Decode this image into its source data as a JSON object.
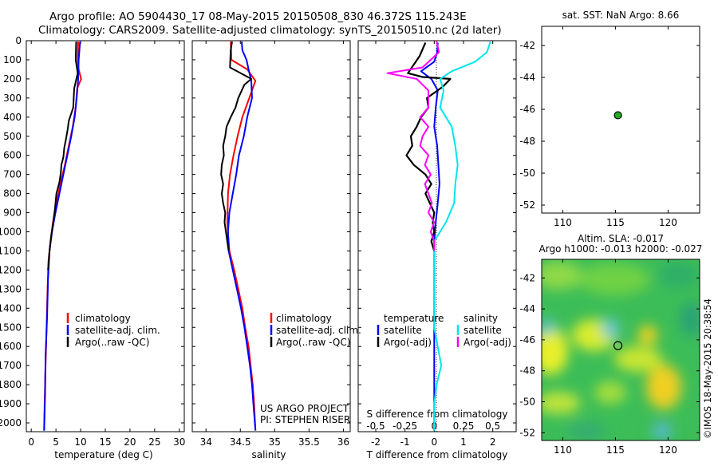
{
  "titles": {
    "line1": "Argo profile: AO 5904430_17 08-May-2015 20150508_830 46.372S 115.243E",
    "line2": "Climatology: CARS2009. Satellite-adjusted climatology: synTS_20150510.nc (2d later)"
  },
  "depth_ticks": [
    "0",
    "100",
    "200",
    "300",
    "400",
    "500",
    "600",
    "700",
    "800",
    "900",
    "1000",
    "1100",
    "1200",
    "1300",
    "1400",
    "1500",
    "1600",
    "1700",
    "1800",
    "1900",
    "2000"
  ],
  "temp_panel": {
    "xlabel": "temperature (deg C)",
    "xticks": [
      "0",
      "5",
      "10",
      "15",
      "20",
      "25",
      "30"
    ],
    "legend": [
      "climatology",
      "satellite-adj. clim.",
      "Argo(..raw -QC)"
    ]
  },
  "sal_panel": {
    "xlabel": "salinity",
    "xticks": [
      "34",
      "34.5",
      "35",
      "35.5",
      "36"
    ],
    "legend": [
      "climatology",
      "satellite-adj. clim.",
      "Argo(..raw -QC)"
    ],
    "credit1": "US ARGO PROJECT",
    "credit2": "PI: STEPHEN RISER"
  },
  "diff_panel": {
    "xlabel": "T difference from climatology",
    "top_label": "S difference from climatology",
    "xticks": [
      "-2",
      "-1",
      "0",
      "1",
      "2"
    ],
    "sticks": [
      "-0.5",
      "-0.25",
      "0",
      "0.25",
      "0.5"
    ],
    "leg_temp_head": "temperature",
    "leg_temp_items": [
      "satellite",
      "Argo(-adj)"
    ],
    "leg_sal_head": "salinity",
    "leg_sal_items": [
      "satellite",
      "Argo(-adj)"
    ]
  },
  "map1": {
    "title": "sat. SST: NaN Argo: 8.66",
    "yticks": [
      "-42",
      "-44",
      "-46",
      "-48",
      "-50",
      "-52"
    ],
    "xticks": [
      "110",
      "115",
      "120"
    ]
  },
  "map2": {
    "title1": "Altim. SLA: -0.017",
    "title2": "Argo h1000: -0.013 h2000: -0.027",
    "yticks": [
      "-42",
      "-44",
      "-46",
      "-48",
      "-50",
      "-52"
    ],
    "xticks": [
      "110",
      "115",
      "120"
    ]
  },
  "stamp": "©IMOS 18-May-2015 20:38:54",
  "colors": {
    "climatology": "#ff0000",
    "satellite_adj": "#0000ff",
    "argo": "#000000",
    "sal_satellite": "#00e5ee",
    "sal_argo": "#ff00ff",
    "float_marker": "#22aa22"
  },
  "chart_data": [
    {
      "type": "line",
      "panel": "temperature",
      "xlim": [
        -1,
        31
      ],
      "ylim": [
        2050,
        0
      ],
      "series": [
        {
          "name": "climatology",
          "points": [
            [
              9.5,
              5
            ],
            [
              9.4,
              100
            ],
            [
              9.6,
              150
            ],
            [
              10.1,
              200
            ],
            [
              9.3,
              250
            ],
            [
              9.0,
              350
            ],
            [
              8.4,
              450
            ],
            [
              7.6,
              550
            ],
            [
              6.8,
              650
            ],
            [
              5.9,
              750
            ],
            [
              5.1,
              850
            ],
            [
              4.4,
              950
            ],
            [
              3.9,
              1050
            ],
            [
              3.5,
              1150
            ],
            [
              3.3,
              1300
            ],
            [
              3.1,
              1500
            ],
            [
              2.9,
              1700
            ],
            [
              2.7,
              1900
            ],
            [
              2.6,
              2040
            ]
          ]
        },
        {
          "name": "satellite-adj. clim.",
          "points": [
            [
              9.9,
              5
            ],
            [
              9.6,
              100
            ],
            [
              9.5,
              200
            ],
            [
              9.2,
              300
            ],
            [
              8.8,
              400
            ],
            [
              8.1,
              500
            ],
            [
              7.3,
              600
            ],
            [
              6.5,
              700
            ],
            [
              5.7,
              800
            ],
            [
              4.9,
              900
            ],
            [
              4.2,
              1000
            ],
            [
              3.7,
              1100
            ],
            [
              3.4,
              1250
            ],
            [
              3.2,
              1450
            ],
            [
              2.9,
              1650
            ],
            [
              2.8,
              1850
            ],
            [
              2.6,
              2040
            ]
          ]
        },
        {
          "name": "Argo(..raw -QC)",
          "points": [
            [
              9.1,
              5
            ],
            [
              9.0,
              100
            ],
            [
              9.4,
              170
            ],
            [
              8.7,
              250
            ],
            [
              8.5,
              350
            ],
            [
              7.6,
              420
            ],
            [
              7.4,
              460
            ],
            [
              7.0,
              520
            ],
            [
              6.7,
              560
            ],
            [
              6.5,
              610
            ],
            [
              6.1,
              650
            ],
            [
              6.0,
              690
            ],
            [
              5.7,
              740
            ],
            [
              5.1,
              800
            ],
            [
              4.8,
              880
            ],
            [
              4.4,
              960
            ],
            [
              4.0,
              1030
            ],
            [
              3.7,
              1100
            ],
            [
              3.4,
              1200
            ]
          ]
        }
      ]
    },
    {
      "type": "line",
      "panel": "salinity",
      "xlim": [
        33.8,
        36.1
      ],
      "ylim": [
        2050,
        0
      ],
      "series": [
        {
          "name": "climatology",
          "points": [
            [
              34.36,
              5
            ],
            [
              34.37,
              100
            ],
            [
              34.6,
              150
            ],
            [
              34.72,
              210
            ],
            [
              34.63,
              300
            ],
            [
              34.53,
              400
            ],
            [
              34.46,
              500
            ],
            [
              34.4,
              600
            ],
            [
              34.35,
              700
            ],
            [
              34.32,
              800
            ],
            [
              34.31,
              950
            ],
            [
              34.34,
              1100
            ],
            [
              34.41,
              1200
            ],
            [
              34.47,
              1300
            ],
            [
              34.53,
              1400
            ],
            [
              34.57,
              1500
            ],
            [
              34.62,
              1600
            ],
            [
              34.65,
              1700
            ],
            [
              34.68,
              1800
            ],
            [
              34.7,
              1900
            ],
            [
              34.72,
              2040
            ]
          ]
        },
        {
          "name": "satellite-adj. clim.",
          "points": [
            [
              34.52,
              5
            ],
            [
              34.53,
              50
            ],
            [
              34.59,
              100
            ],
            [
              34.62,
              150
            ],
            [
              34.66,
              210
            ],
            [
              34.67,
              300
            ],
            [
              34.6,
              400
            ],
            [
              34.55,
              500
            ],
            [
              34.48,
              600
            ],
            [
              34.44,
              700
            ],
            [
              34.39,
              800
            ],
            [
              34.34,
              900
            ],
            [
              34.32,
              1000
            ],
            [
              34.33,
              1100
            ],
            [
              34.39,
              1200
            ],
            [
              34.45,
              1300
            ],
            [
              34.51,
              1400
            ],
            [
              34.56,
              1500
            ],
            [
              34.6,
              1600
            ],
            [
              34.64,
              1700
            ],
            [
              34.67,
              1800
            ],
            [
              34.69,
              1900
            ],
            [
              34.72,
              2040
            ]
          ]
        },
        {
          "name": "Argo(..raw -QC)",
          "points": [
            [
              34.38,
              5
            ],
            [
              34.36,
              50
            ],
            [
              34.35,
              140
            ],
            [
              34.66,
              200
            ],
            [
              34.56,
              230
            ],
            [
              34.47,
              300
            ],
            [
              34.43,
              350
            ],
            [
              34.36,
              400
            ],
            [
              34.3,
              450
            ],
            [
              34.28,
              500
            ],
            [
              34.25,
              550
            ],
            [
              34.26,
              600
            ],
            [
              34.23,
              650
            ],
            [
              34.22,
              700
            ],
            [
              34.25,
              750
            ],
            [
              34.23,
              800
            ],
            [
              34.25,
              850
            ],
            [
              34.28,
              900
            ],
            [
              34.27,
              950
            ],
            [
              34.29,
              1000
            ],
            [
              34.31,
              1050
            ],
            [
              34.33,
              1100
            ]
          ]
        }
      ]
    },
    {
      "type": "line",
      "panel": "difference",
      "xlim": [
        -2.6,
        2.8
      ],
      "ylim": [
        2050,
        0
      ],
      "series": [
        {
          "name": "satellite",
          "variable": "temperature",
          "points": [
            [
              0.12,
              10
            ],
            [
              0.1,
              60
            ],
            [
              0.0,
              110
            ],
            [
              -0.45,
              160
            ],
            [
              -0.1,
              200
            ],
            [
              0.12,
              260
            ],
            [
              0.05,
              350
            ],
            [
              0.0,
              450
            ],
            [
              0.1,
              550
            ],
            [
              0.14,
              650
            ],
            [
              0.18,
              750
            ],
            [
              0.12,
              850
            ],
            [
              0.05,
              950
            ],
            [
              0.0,
              1050
            ],
            [
              0.0,
              1300
            ],
            [
              0.0,
              2040
            ]
          ]
        },
        {
          "name": "Argo(-adj)",
          "variable": "temperature",
          "points": [
            [
              -0.3,
              10
            ],
            [
              -0.5,
              80
            ],
            [
              -0.9,
              170
            ],
            [
              -0.4,
              190
            ],
            [
              0.55,
              200
            ],
            [
              0.3,
              240
            ],
            [
              -0.25,
              300
            ],
            [
              -0.2,
              350
            ],
            [
              -0.45,
              400
            ],
            [
              -0.6,
              450
            ],
            [
              -0.8,
              500
            ],
            [
              -0.75,
              550
            ],
            [
              -0.95,
              600
            ],
            [
              -0.7,
              650
            ],
            [
              -0.3,
              700
            ],
            [
              -0.1,
              750
            ],
            [
              -0.3,
              800
            ],
            [
              -0.15,
              850
            ],
            [
              0.0,
              900
            ],
            [
              -0.05,
              950
            ],
            [
              0.0,
              1000
            ],
            [
              -0.1,
              1050
            ],
            [
              0.0,
              1100
            ]
          ]
        },
        {
          "name": "satellite",
          "variable": "salinity",
          "points": [
            [
              0.48,
              5
            ],
            [
              0.45,
              60
            ],
            [
              0.35,
              110
            ],
            [
              0.15,
              160
            ],
            [
              0.05,
              200
            ],
            [
              0.08,
              260
            ],
            [
              0.05,
              350
            ],
            [
              0.15,
              450
            ],
            [
              0.18,
              550
            ],
            [
              0.2,
              650
            ],
            [
              0.18,
              750
            ],
            [
              0.17,
              850
            ],
            [
              0.1,
              950
            ],
            [
              0.0,
              1050
            ],
            [
              0.0,
              1300
            ],
            [
              0.0,
              1500
            ],
            [
              0.03,
              1600
            ],
            [
              0.06,
              1700
            ],
            [
              0.02,
              1800
            ],
            [
              0.0,
              1900
            ],
            [
              0.0,
              2040
            ]
          ]
        },
        {
          "name": "Argo(-adj)",
          "variable": "salinity",
          "points": [
            [
              0.02,
              5
            ],
            [
              0.04,
              60
            ],
            [
              -0.1,
              140
            ],
            [
              -0.4,
              170
            ],
            [
              -0.15,
              200
            ],
            [
              -0.05,
              260
            ],
            [
              -0.05,
              350
            ],
            [
              -0.12,
              400
            ],
            [
              -0.05,
              450
            ],
            [
              -0.1,
              500
            ],
            [
              -0.12,
              550
            ],
            [
              -0.05,
              600
            ],
            [
              -0.08,
              650
            ],
            [
              -0.03,
              700
            ],
            [
              -0.08,
              750
            ],
            [
              -0.05,
              800
            ],
            [
              -0.02,
              850
            ],
            [
              -0.05,
              900
            ],
            [
              0.0,
              950
            ],
            [
              -0.03,
              1000
            ],
            [
              0.0,
              1050
            ],
            [
              0.0,
              1100
            ]
          ]
        }
      ]
    },
    {
      "type": "scatter",
      "panel": "sst_map",
      "xlim": [
        108,
        123
      ],
      "ylim": [
        -52.5,
        -40.8
      ],
      "series": [
        {
          "points": [
            [
              115.243,
              -46.372
            ]
          ]
        }
      ]
    },
    {
      "type": "heatmap",
      "panel": "sla_map",
      "xlim": [
        108,
        123
      ],
      "ylim": [
        -52.5,
        -40.8
      ],
      "series": [
        {
          "points": [
            [
              115.243,
              -46.372
            ]
          ]
        }
      ]
    }
  ]
}
